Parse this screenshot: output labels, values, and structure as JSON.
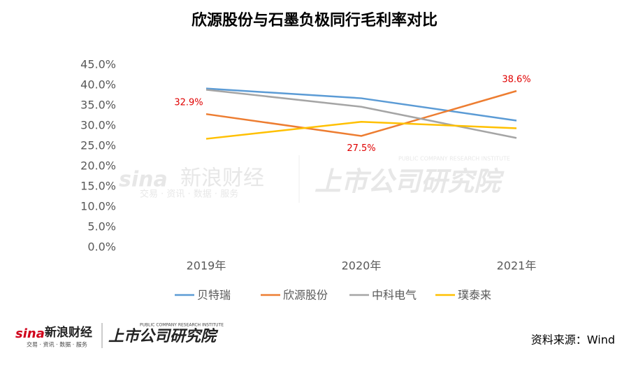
{
  "chart_data": {
    "type": "line",
    "title": "欣源股份与石墨负极同行毛利率对比",
    "categories": [
      "2019年",
      "2020年",
      "2021年"
    ],
    "series": [
      {
        "name": "贝特瑞",
        "color": "#5b9bd5",
        "values": [
          39.2,
          36.8,
          31.3
        ]
      },
      {
        "name": "欣源股份",
        "color": "#ed7d31",
        "values": [
          32.9,
          27.5,
          38.6
        ],
        "value_labels": [
          "32.9%",
          "27.5%",
          "38.6%"
        ]
      },
      {
        "name": "中科电气",
        "color": "#a5a5a5",
        "values": [
          38.9,
          34.7,
          27.0
        ]
      },
      {
        "name": "璞泰来",
        "color": "#ffc000",
        "values": [
          26.8,
          31.0,
          29.4
        ]
      }
    ],
    "ylim": [
      0,
      45
    ],
    "yticks": [
      {
        "value": 0,
        "label": "0.0%"
      },
      {
        "value": 5,
        "label": "5.0%"
      },
      {
        "value": 10,
        "label": "10.0%"
      },
      {
        "value": 15,
        "label": "15.0%"
      },
      {
        "value": 20,
        "label": "20.0%"
      },
      {
        "value": 25,
        "label": "25.0%"
      },
      {
        "value": 30,
        "label": "30.0%"
      },
      {
        "value": 35,
        "label": "35.0%"
      },
      {
        "value": 40,
        "label": "40.0%"
      },
      {
        "value": 45,
        "label": "45.0%"
      }
    ],
    "grid": false,
    "legend": "bottom"
  },
  "source": "资料来源：Wind",
  "watermark": {
    "brand": "新浪财经",
    "tagline": "交易 · 资讯 · 数据 · 服务",
    "institute": "上市公司研究院",
    "institute_en": "PUBLIC COMPANY RESEARCH INSTITUTE"
  }
}
